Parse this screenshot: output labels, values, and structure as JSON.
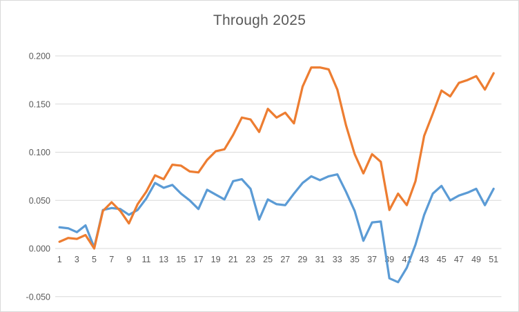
{
  "window": {
    "background": "#ffffff",
    "border_color": "#d9d9d9"
  },
  "chart_data": {
    "type": "line",
    "title": "Through 2025",
    "xlabel": "",
    "ylabel": "",
    "legend": "none",
    "grid": true,
    "gridline_color": "#d9d9d9",
    "tick_label_color": "#595959",
    "title_color": "#595959",
    "ylim": [
      -0.05,
      0.2
    ],
    "y_ticks": [
      {
        "label": "0.200",
        "value": 0.2
      },
      {
        "label": "0.150",
        "value": 0.15
      },
      {
        "label": "0.100",
        "value": 0.1
      },
      {
        "label": "0.050",
        "value": 0.05
      },
      {
        "label": "0.000",
        "value": 0.0
      },
      {
        "label": "-0.050",
        "value": -0.05
      }
    ],
    "x": [
      1,
      2,
      3,
      4,
      5,
      6,
      7,
      8,
      9,
      10,
      11,
      12,
      13,
      14,
      15,
      16,
      17,
      18,
      19,
      20,
      21,
      22,
      23,
      24,
      25,
      26,
      27,
      28,
      29,
      30,
      31,
      32,
      33,
      34,
      35,
      36,
      37,
      38,
      39,
      40,
      41,
      42,
      43,
      44,
      45,
      46,
      47,
      48,
      49,
      50,
      51
    ],
    "x_tick_labels": [
      "1",
      "3",
      "5",
      "7",
      "9",
      "11",
      "13",
      "15",
      "17",
      "19",
      "21",
      "23",
      "25",
      "27",
      "29",
      "31",
      "33",
      "35",
      "37",
      "39",
      "41",
      "43",
      "45",
      "47",
      "49",
      "51"
    ],
    "series": [
      {
        "name": "blue-series",
        "color": "#5B9BD5",
        "values": [
          0.022,
          0.021,
          0.017,
          0.024,
          0.001,
          0.04,
          0.042,
          0.041,
          0.035,
          0.04,
          0.052,
          0.068,
          0.063,
          0.066,
          0.057,
          0.05,
          0.041,
          0.061,
          0.056,
          0.051,
          0.07,
          0.072,
          0.062,
          0.03,
          0.051,
          0.046,
          0.045,
          0.057,
          0.068,
          0.075,
          0.071,
          0.075,
          0.077,
          0.059,
          0.039,
          0.008,
          0.027,
          0.028,
          -0.031,
          -0.035,
          -0.02,
          0.004,
          0.035,
          0.057,
          0.065,
          0.05,
          0.055,
          0.058,
          0.062,
          0.045,
          0.062
        ]
      },
      {
        "name": "orange-series",
        "color": "#ED7D31",
        "values": [
          0.007,
          0.011,
          0.01,
          0.014,
          0.0,
          0.039,
          0.048,
          0.039,
          0.026,
          0.046,
          0.059,
          0.076,
          0.072,
          0.087,
          0.086,
          0.08,
          0.079,
          0.092,
          0.101,
          0.103,
          0.118,
          0.136,
          0.134,
          0.121,
          0.145,
          0.136,
          0.141,
          0.13,
          0.168,
          0.188,
          0.188,
          0.186,
          0.165,
          0.128,
          0.098,
          0.078,
          0.098,
          0.09,
          0.04,
          0.057,
          0.045,
          0.07,
          0.117,
          0.14,
          0.164,
          0.158,
          0.172,
          0.175,
          0.179,
          0.165,
          0.182
        ]
      }
    ]
  }
}
